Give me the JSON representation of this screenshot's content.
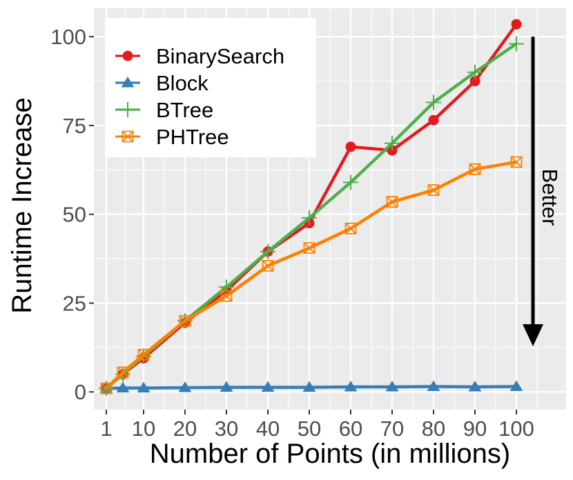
{
  "chart_data": {
    "type": "line",
    "xlabel": "Number of Points (in millions)",
    "ylabel": "Runtime Increase",
    "xlim": [
      -2,
      112
    ],
    "ylim": [
      -5,
      108
    ],
    "x_ticks": [
      1,
      10,
      20,
      30,
      40,
      50,
      60,
      70,
      80,
      90,
      100
    ],
    "y_ticks": [
      0,
      25,
      50,
      75,
      100
    ],
    "grid": true,
    "legend_position": "top-left",
    "series": [
      {
        "name": "BinarySearch",
        "color": "#e41a1c",
        "marker": "circle",
        "x": [
          1,
          5,
          10,
          20,
          30,
          40,
          50,
          60,
          70,
          80,
          90,
          100
        ],
        "values": [
          1,
          5,
          9.5,
          19.5,
          28.5,
          39.5,
          47.5,
          69,
          68,
          76.5,
          87.5,
          103.5
        ]
      },
      {
        "name": "Block",
        "color": "#377eb8",
        "marker": "triangle",
        "x": [
          1,
          5,
          10,
          20,
          30,
          40,
          50,
          60,
          70,
          80,
          90,
          100
        ],
        "values": [
          1,
          1.1,
          1.1,
          1.2,
          1.3,
          1.3,
          1.3,
          1.4,
          1.4,
          1.5,
          1.4,
          1.5
        ]
      },
      {
        "name": "BTree",
        "color": "#4daf4a",
        "marker": "plus",
        "x": [
          1,
          5,
          10,
          20,
          30,
          40,
          50,
          60,
          70,
          80,
          90,
          100
        ],
        "values": [
          1,
          5,
          10,
          20,
          29.5,
          39.5,
          49,
          59,
          70,
          81.5,
          90,
          98
        ]
      },
      {
        "name": "PHTree",
        "color": "#ff7f00",
        "marker": "boxx",
        "x": [
          1,
          5,
          10,
          20,
          30,
          40,
          50,
          60,
          70,
          80,
          90,
          100
        ],
        "values": [
          1,
          5.5,
          10.5,
          20,
          27,
          35.5,
          40.5,
          46,
          53.5,
          56.8,
          62.7,
          64.7
        ]
      }
    ],
    "annotation": {
      "text": "Better",
      "arrow_from_y": 100,
      "arrow_to_y": 14,
      "arrow_x": 104
    }
  }
}
